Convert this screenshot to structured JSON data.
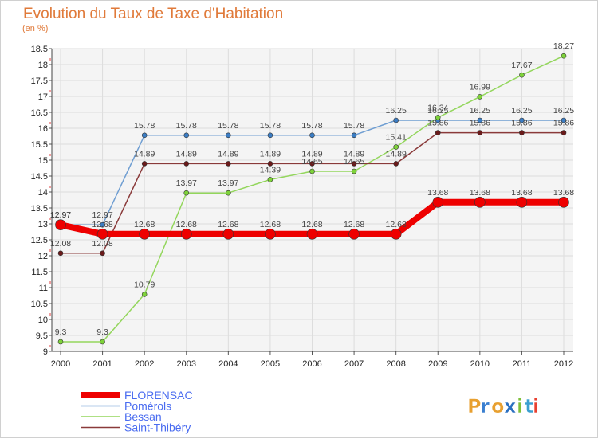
{
  "chart_data": {
    "type": "line",
    "title": "Evolution du Taux de Taxe d'Habitation",
    "ylabel": "(en %)",
    "xlabel": "",
    "ylim": [
      9,
      18.5
    ],
    "ytick_step": 0.5,
    "grid": true,
    "categories": [
      "2000",
      "2001",
      "2002",
      "2003",
      "2004",
      "2005",
      "2006",
      "2007",
      "2008",
      "2009",
      "2010",
      "2011",
      "2012"
    ],
    "series": [
      {
        "name": "Pomérols",
        "color": "#6f9ed2",
        "marker": "#3b7dc4",
        "values": [
          12.97,
          12.97,
          15.78,
          15.78,
          15.78,
          15.78,
          15.78,
          15.78,
          16.25,
          16.25,
          16.25,
          16.25,
          16.25
        ]
      },
      {
        "name": "Bessan",
        "color": "#93d65c",
        "marker": "#7ed33a",
        "values": [
          9.3,
          9.3,
          10.79,
          13.97,
          13.97,
          14.39,
          14.65,
          14.65,
          15.41,
          16.34,
          16.99,
          17.67,
          18.27
        ]
      },
      {
        "name": "Saint-Thibéry",
        "color": "#8a3a3a",
        "marker": "#6b1a1a",
        "values": [
          12.08,
          12.08,
          14.89,
          14.89,
          14.89,
          14.89,
          14.89,
          14.89,
          14.89,
          15.86,
          15.86,
          15.86,
          15.86
        ]
      },
      {
        "name": "FLORENSAC",
        "color": "#ee0000",
        "marker": "#ee0000",
        "values": [
          12.97,
          12.68,
          12.68,
          12.68,
          12.68,
          12.68,
          12.68,
          12.68,
          12.68,
          13.68,
          13.68,
          13.68,
          13.68
        ]
      }
    ],
    "data_labels": [
      {
        "text": "12.97",
        "series": 3,
        "index": 0
      },
      {
        "text": "12.97",
        "series": 0,
        "index": 0
      },
      {
        "text": "12.97",
        "series": 0,
        "index": 1
      },
      {
        "text": "12.68",
        "series": 3,
        "index": 1
      },
      {
        "text": "12.08",
        "series": 2,
        "index": 0
      },
      {
        "text": "12.08",
        "series": 2,
        "index": 1
      },
      {
        "text": "9.3",
        "series": 1,
        "index": 0
      },
      {
        "text": "9.3",
        "series": 1,
        "index": 1
      },
      {
        "text": "15.78",
        "series": 0,
        "index": 2
      },
      {
        "text": "15.78",
        "series": 0,
        "index": 3
      },
      {
        "text": "15.78",
        "series": 0,
        "index": 4
      },
      {
        "text": "15.78",
        "series": 0,
        "index": 5
      },
      {
        "text": "15.78",
        "series": 0,
        "index": 6
      },
      {
        "text": "15.78",
        "series": 0,
        "index": 7
      },
      {
        "text": "16.25",
        "series": 0,
        "index": 8
      },
      {
        "text": "16.25",
        "series": 0,
        "index": 9
      },
      {
        "text": "16.25",
        "series": 0,
        "index": 10
      },
      {
        "text": "16.25",
        "series": 0,
        "index": 11
      },
      {
        "text": "16.25",
        "series": 0,
        "index": 12
      },
      {
        "text": "14.89",
        "series": 2,
        "index": 2
      },
      {
        "text": "14.89",
        "series": 2,
        "index": 3
      },
      {
        "text": "14.89",
        "series": 2,
        "index": 4
      },
      {
        "text": "14.89",
        "series": 2,
        "index": 5
      },
      {
        "text": "14.89",
        "series": 2,
        "index": 6
      },
      {
        "text": "14.89",
        "series": 2,
        "index": 7
      },
      {
        "text": "14.89",
        "series": 2,
        "index": 8
      },
      {
        "text": "15.86",
        "series": 2,
        "index": 9
      },
      {
        "text": "15.86",
        "series": 2,
        "index": 10
      },
      {
        "text": "15.86",
        "series": 2,
        "index": 11
      },
      {
        "text": "15.86",
        "series": 2,
        "index": 12
      },
      {
        "text": "10.79",
        "series": 1,
        "index": 2
      },
      {
        "text": "13.97",
        "series": 1,
        "index": 3
      },
      {
        "text": "13.97",
        "series": 1,
        "index": 4
      },
      {
        "text": "14.39",
        "series": 1,
        "index": 5
      },
      {
        "text": "14.65",
        "series": 1,
        "index": 6
      },
      {
        "text": "14.65",
        "series": 1,
        "index": 7
      },
      {
        "text": "15.41",
        "series": 1,
        "index": 8
      },
      {
        "text": "16.34",
        "series": 1,
        "index": 9
      },
      {
        "text": "16.99",
        "series": 1,
        "index": 10
      },
      {
        "text": "17.67",
        "series": 1,
        "index": 11
      },
      {
        "text": "18.27",
        "series": 1,
        "index": 12
      },
      {
        "text": "12.68",
        "series": 3,
        "index": 2
      },
      {
        "text": "12.68",
        "series": 3,
        "index": 3
      },
      {
        "text": "12.68",
        "series": 3,
        "index": 4
      },
      {
        "text": "12.68",
        "series": 3,
        "index": 5
      },
      {
        "text": "12.68",
        "series": 3,
        "index": 6
      },
      {
        "text": "12.68",
        "series": 3,
        "index": 7
      },
      {
        "text": "12.68",
        "series": 3,
        "index": 8
      },
      {
        "text": "13.68",
        "series": 3,
        "index": 9
      },
      {
        "text": "13.68",
        "series": 3,
        "index": 10
      },
      {
        "text": "13.68",
        "series": 3,
        "index": 11
      },
      {
        "text": "13.68",
        "series": 3,
        "index": 12
      }
    ],
    "legend": [
      "FLORENSAC",
      "Pomérols",
      "Bessan",
      "Saint-Thibéry"
    ],
    "legend_position": "bottom-left"
  },
  "brand": {
    "name": "Proxiti",
    "letters": [
      {
        "char": "P",
        "color": "#e8a030"
      },
      {
        "char": "r",
        "color": "#3a7fd0"
      },
      {
        "char": "o",
        "color": "#e8a030"
      },
      {
        "char": "x",
        "color": "#2a6fc0"
      },
      {
        "char": "i",
        "color": "#7ec03a"
      },
      {
        "char": "t",
        "color": "#3a9fd0"
      },
      {
        "char": "i",
        "color": "#e84030"
      }
    ]
  }
}
